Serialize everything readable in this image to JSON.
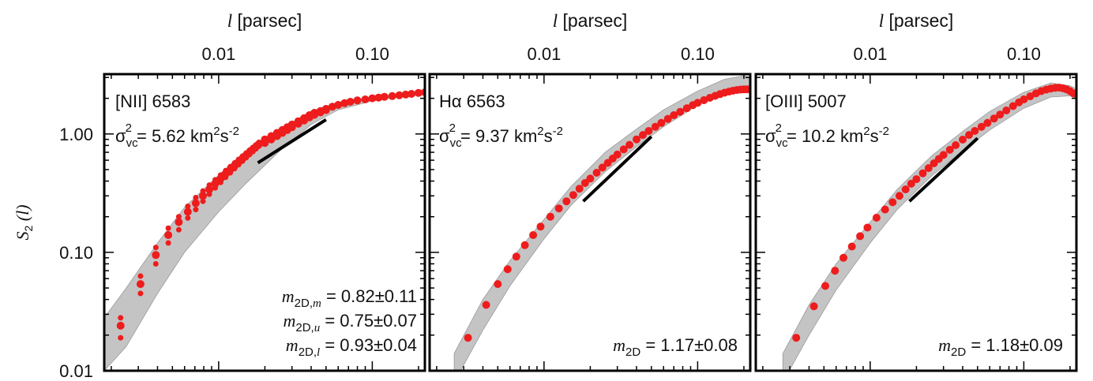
{
  "chart_data": [
    {
      "type": "scatter",
      "top_axis_label": "l [parsec]",
      "top_axis_label_var": "l",
      "top_axis_label_unit": " [parsec]",
      "top_ticks": [
        {
          "value": 0.01,
          "label": "0.01"
        },
        {
          "value": 0.1,
          "label": "0.10"
        }
      ],
      "xlim": [
        0.0018,
        0.22
      ],
      "ylim": [
        0.01,
        3.2
      ],
      "yscale": "log",
      "xscale": "log",
      "ylabel": "S2 (l)",
      "ylabel_main": "S",
      "ylabel_sub": "2",
      "ylabel_paren": " (l)",
      "y_ticks": [
        {
          "value": 0.01,
          "label": "0.01"
        },
        {
          "value": 0.1,
          "label": "0.10"
        },
        {
          "value": 1.0,
          "label": "1.00"
        }
      ],
      "line": {
        "name_main": "[NII]",
        "name_rest": " 6583"
      },
      "sigma": {
        "prefix": " = ",
        "value": "5.62",
        "unit_pre": " km",
        "unit_exp1": "2",
        "unit_mid": "s",
        "unit_exp2": "-2"
      },
      "annotations": [
        {
          "base": "m",
          "sub": "2D,",
          "sub_it": "m",
          "text": " = 0.82±0.11"
        },
        {
          "base": "m",
          "sub": "2D,",
          "sub_it": "u",
          "text": " = 0.75±0.07"
        },
        {
          "base": "m",
          "sub": "2D,",
          "sub_it": "l",
          "text": " = 0.93±0.04"
        }
      ],
      "band": {
        "x": [
          0.0018,
          0.0025,
          0.004,
          0.006,
          0.01,
          0.015,
          0.025,
          0.04,
          0.06,
          0.1,
          0.15,
          0.22
        ],
        "upper": [
          0.028,
          0.05,
          0.12,
          0.24,
          0.45,
          0.72,
          1.1,
          1.55,
          1.85,
          2.05,
          2.15,
          2.25
        ],
        "lower": [
          0.01,
          0.016,
          0.045,
          0.1,
          0.22,
          0.38,
          0.72,
          1.2,
          1.6,
          1.9,
          2.05,
          2.15
        ]
      },
      "series": [
        {
          "x": [
            0.0023,
            0.0023,
            0.0023,
            0.0031,
            0.0031,
            0.0031,
            0.0039,
            0.0039,
            0.0039,
            0.0047,
            0.0047,
            0.0047,
            0.0055,
            0.0055,
            0.0055,
            0.0063,
            0.0063,
            0.0063,
            0.0071,
            0.0071,
            0.0071,
            0.0079,
            0.0079,
            0.0079,
            0.0087,
            0.0087,
            0.0087,
            0.0095,
            0.0095,
            0.0095,
            0.0103,
            0.0103,
            0.0103,
            0.0111,
            0.0111,
            0.0111,
            0.0119,
            0.0119,
            0.0119,
            0.0127,
            0.0127,
            0.0127,
            0.0135,
            0.0135,
            0.0135,
            0.0143,
            0.0143,
            0.0143,
            0.0151,
            0.0151,
            0.0151,
            0.0159,
            0.0159,
            0.0159,
            0.0167,
            0.0167,
            0.0167,
            0.0175,
            0.0175,
            0.0175,
            0.0183,
            0.0183,
            0.0183,
            0.02,
            0.02,
            0.02,
            0.022,
            0.022,
            0.022,
            0.024,
            0.024,
            0.024,
            0.026,
            0.026,
            0.026,
            0.028,
            0.028,
            0.028,
            0.03,
            0.03,
            0.03,
            0.033,
            0.033,
            0.033,
            0.036,
            0.036,
            0.036,
            0.039,
            0.039,
            0.039,
            0.042,
            0.042,
            0.042,
            0.046,
            0.046,
            0.05,
            0.05,
            0.055,
            0.06,
            0.066,
            0.072,
            0.08,
            0.09,
            0.1,
            0.11,
            0.12,
            0.135,
            0.15,
            0.165,
            0.18,
            0.2,
            0.22
          ],
          "y": [
            0.024,
            0.028,
            0.019,
            0.054,
            0.063,
            0.045,
            0.095,
            0.11,
            0.08,
            0.14,
            0.16,
            0.12,
            0.18,
            0.2,
            0.155,
            0.22,
            0.245,
            0.195,
            0.26,
            0.29,
            0.23,
            0.3,
            0.33,
            0.27,
            0.34,
            0.37,
            0.31,
            0.38,
            0.41,
            0.35,
            0.42,
            0.45,
            0.39,
            0.46,
            0.49,
            0.43,
            0.5,
            0.53,
            0.47,
            0.54,
            0.57,
            0.51,
            0.58,
            0.61,
            0.55,
            0.62,
            0.65,
            0.59,
            0.66,
            0.69,
            0.63,
            0.7,
            0.73,
            0.67,
            0.74,
            0.77,
            0.71,
            0.78,
            0.81,
            0.75,
            0.82,
            0.85,
            0.79,
            0.87,
            0.9,
            0.84,
            0.93,
            0.96,
            0.9,
            0.99,
            1.02,
            0.96,
            1.05,
            1.08,
            1.02,
            1.11,
            1.14,
            1.08,
            1.17,
            1.2,
            1.14,
            1.25,
            1.28,
            1.22,
            1.33,
            1.36,
            1.3,
            1.41,
            1.44,
            1.38,
            1.48,
            1.51,
            1.45,
            1.56,
            1.52,
            1.63,
            1.59,
            1.7,
            1.76,
            1.82,
            1.87,
            1.92,
            1.96,
            2.0,
            2.03,
            2.06,
            2.09,
            2.12,
            2.15,
            2.18,
            2.22,
            2.25
          ]
        }
      ],
      "fit": {
        "x": [
          0.018,
          0.05
        ],
        "y": [
          0.57,
          1.32
        ]
      }
    },
    {
      "type": "scatter",
      "top_axis_label": "l [parsec]",
      "top_axis_label_var": "l",
      "top_axis_label_unit": " [parsec]",
      "top_ticks": [
        {
          "value": 0.01,
          "label": "0.01"
        },
        {
          "value": 0.1,
          "label": "0.10"
        }
      ],
      "xlim": [
        0.0018,
        0.22
      ],
      "ylim": [
        0.01,
        3.2
      ],
      "yscale": "log",
      "xscale": "log",
      "line": {
        "name_main": "Hα",
        "name_rest": " 6563"
      },
      "sigma": {
        "prefix": " = ",
        "value": "9.37",
        "unit_pre": " km",
        "unit_exp1": "2",
        "unit_mid": "s",
        "unit_exp2": "-2"
      },
      "annotations": [
        {
          "base": "m",
          "sub": "2D",
          "sub_it": "",
          "text": " = 1.17±0.08"
        }
      ],
      "band": {
        "x": [
          0.0026,
          0.004,
          0.006,
          0.01,
          0.015,
          0.025,
          0.04,
          0.06,
          0.1,
          0.15,
          0.2,
          0.22
        ],
        "upper": [
          0.014,
          0.04,
          0.085,
          0.19,
          0.36,
          0.7,
          1.1,
          1.6,
          2.3,
          2.9,
          3.1,
          3.0
        ],
        "lower": [
          0.008,
          0.022,
          0.052,
          0.13,
          0.25,
          0.48,
          0.78,
          1.15,
          1.75,
          2.3,
          2.45,
          2.4
        ]
      },
      "series": [
        {
          "x": [
            0.0032,
            0.0042,
            0.005,
            0.0058,
            0.0066,
            0.0075,
            0.0085,
            0.0095,
            0.011,
            0.0125,
            0.014,
            0.0155,
            0.017,
            0.0185,
            0.02,
            0.022,
            0.024,
            0.026,
            0.028,
            0.03,
            0.033,
            0.036,
            0.04,
            0.044,
            0.048,
            0.053,
            0.058,
            0.064,
            0.07,
            0.077,
            0.085,
            0.093,
            0.1,
            0.11,
            0.12,
            0.13,
            0.14,
            0.15,
            0.16,
            0.17,
            0.18,
            0.19,
            0.2,
            0.21
          ],
          "y": [
            0.019,
            0.036,
            0.054,
            0.072,
            0.092,
            0.115,
            0.14,
            0.165,
            0.2,
            0.235,
            0.27,
            0.305,
            0.345,
            0.385,
            0.42,
            0.47,
            0.52,
            0.57,
            0.62,
            0.67,
            0.74,
            0.81,
            0.9,
            0.98,
            1.06,
            1.15,
            1.24,
            1.34,
            1.44,
            1.54,
            1.65,
            1.75,
            1.83,
            1.93,
            2.02,
            2.1,
            2.17,
            2.23,
            2.28,
            2.32,
            2.35,
            2.37,
            2.38,
            2.38
          ]
        }
      ],
      "fit": {
        "x": [
          0.018,
          0.05
        ],
        "y": [
          0.27,
          0.95
        ]
      }
    },
    {
      "type": "scatter",
      "top_axis_label": "l [parsec]",
      "top_axis_label_var": "l",
      "top_axis_label_unit": " [parsec]",
      "top_ticks": [
        {
          "value": 0.01,
          "label": "0.01"
        },
        {
          "value": 0.1,
          "label": "0.10"
        }
      ],
      "xlim": [
        0.0018,
        0.22
      ],
      "ylim": [
        0.01,
        3.2
      ],
      "yscale": "log",
      "xscale": "log",
      "line": {
        "name_main": "[OIII]",
        "name_rest": " 5007"
      },
      "sigma": {
        "prefix": " = ",
        "value": "10.2",
        "unit_pre": " km",
        "unit_exp1": "2",
        "unit_mid": "s",
        "unit_exp2": "-2"
      },
      "annotations": [
        {
          "base": "m",
          "sub": "2D",
          "sub_it": "",
          "text": " = 1.18±0.09"
        }
      ],
      "band": {
        "x": [
          0.0027,
          0.004,
          0.006,
          0.01,
          0.015,
          0.025,
          0.04,
          0.06,
          0.1,
          0.15,
          0.2,
          0.22
        ],
        "upper": [
          0.014,
          0.036,
          0.08,
          0.18,
          0.34,
          0.65,
          1.05,
          1.55,
          2.25,
          2.7,
          2.55,
          2.4
        ],
        "lower": [
          0.008,
          0.02,
          0.048,
          0.12,
          0.23,
          0.44,
          0.72,
          1.08,
          1.65,
          2.05,
          2.1,
          2.0
        ]
      },
      "series": [
        {
          "x": [
            0.0033,
            0.0043,
            0.0051,
            0.0059,
            0.0067,
            0.0076,
            0.0086,
            0.0096,
            0.011,
            0.0125,
            0.014,
            0.0155,
            0.017,
            0.0185,
            0.02,
            0.022,
            0.024,
            0.026,
            0.028,
            0.03,
            0.033,
            0.036,
            0.04,
            0.044,
            0.048,
            0.053,
            0.058,
            0.064,
            0.07,
            0.077,
            0.085,
            0.093,
            0.1,
            0.11,
            0.12,
            0.13,
            0.14,
            0.15,
            0.16,
            0.17,
            0.18,
            0.19,
            0.2,
            0.21
          ],
          "y": [
            0.019,
            0.035,
            0.052,
            0.07,
            0.09,
            0.112,
            0.137,
            0.162,
            0.196,
            0.23,
            0.265,
            0.3,
            0.34,
            0.38,
            0.415,
            0.465,
            0.515,
            0.565,
            0.615,
            0.665,
            0.735,
            0.805,
            0.895,
            0.98,
            1.06,
            1.15,
            1.24,
            1.35,
            1.46,
            1.58,
            1.72,
            1.85,
            1.96,
            2.08,
            2.2,
            2.3,
            2.37,
            2.42,
            2.45,
            2.46,
            2.43,
            2.38,
            2.3,
            2.2
          ]
        }
      ],
      "fit": {
        "x": [
          0.018,
          0.05
        ],
        "y": [
          0.27,
          0.92
        ]
      }
    }
  ],
  "colors": {
    "points": "#ee1c1c",
    "band": "#c4c4c4",
    "band_line": "#9a9a9a",
    "fit": "#000000",
    "axes": "#000000"
  }
}
